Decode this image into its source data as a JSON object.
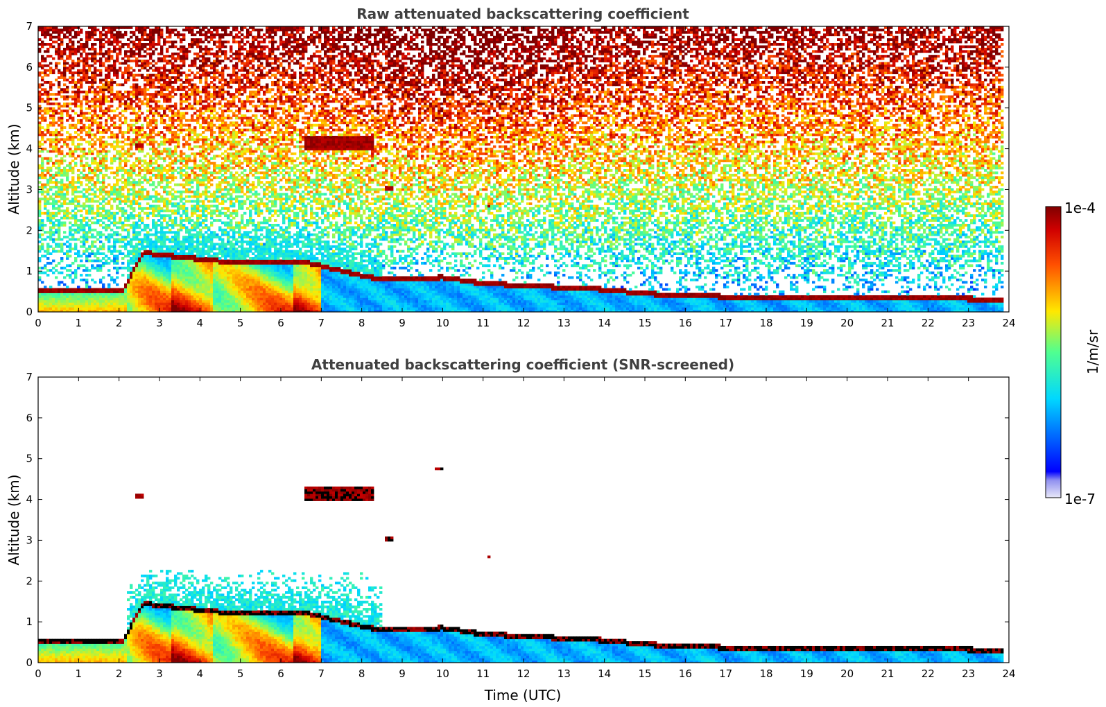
{
  "chart_data": [
    {
      "type": "heatmap",
      "title": "Raw attenuated backscattering coefficient",
      "xlabel": "",
      "ylabel": "Altitude (km)",
      "xlim": [
        0,
        24
      ],
      "ylim": [
        0,
        7
      ],
      "x_ticks": [
        "0",
        "1",
        "2",
        "3",
        "4",
        "5",
        "6",
        "7",
        "8",
        "9",
        "10",
        "11",
        "12",
        "13",
        "14",
        "15",
        "16",
        "17",
        "18",
        "19",
        "20",
        "21",
        "22",
        "23",
        "24"
      ],
      "y_ticks": [
        "0",
        "1",
        "2",
        "3",
        "4",
        "5",
        "6",
        "7"
      ],
      "x_range_data": [
        0,
        23.85
      ],
      "screened": false,
      "boundary_layer_top_km": [
        [
          0,
          0.5
        ],
        [
          2.1,
          0.55
        ],
        [
          2.6,
          1.45
        ],
        [
          4,
          1.3
        ],
        [
          5,
          1.2
        ],
        [
          6,
          1.25
        ],
        [
          6.7,
          1.2
        ],
        [
          8.2,
          0.85
        ],
        [
          9,
          0.8
        ],
        [
          10,
          0.85
        ],
        [
          11,
          0.7
        ],
        [
          12,
          0.65
        ],
        [
          13,
          0.6
        ],
        [
          14,
          0.55
        ],
        [
          15,
          0.45
        ],
        [
          16,
          0.4
        ],
        [
          18,
          0.35
        ],
        [
          20,
          0.35
        ],
        [
          22,
          0.35
        ],
        [
          23.8,
          0.3
        ]
      ],
      "cloud_features": [
        {
          "time_utc": [
            6.6,
            8.3
          ],
          "altitude_km": [
            3.95,
            4.3
          ],
          "level": "high"
        },
        {
          "time_utc": [
            2.4,
            2.6
          ],
          "altitude_km": [
            4.0,
            4.15
          ],
          "level": "high"
        },
        {
          "time_utc": [
            9.8,
            10.0
          ],
          "altitude_km": [
            4.7,
            4.8
          ],
          "level": "high"
        },
        {
          "time_utc": [
            8.6,
            8.8
          ],
          "altitude_km": [
            3.0,
            3.1
          ],
          "level": "high"
        },
        {
          "time_utc": [
            11.1,
            11.2
          ],
          "altitude_km": [
            2.55,
            2.65
          ],
          "level": "high"
        }
      ]
    },
    {
      "type": "heatmap",
      "title": "Attenuated backscattering coefficient (SNR-screened)",
      "xlabel": "Time (UTC)",
      "ylabel": "Altitude (km)",
      "xlim": [
        0,
        24
      ],
      "ylim": [
        0,
        7
      ],
      "x_ticks": [
        "0",
        "1",
        "2",
        "3",
        "4",
        "5",
        "6",
        "7",
        "8",
        "9",
        "10",
        "11",
        "12",
        "13",
        "14",
        "15",
        "16",
        "17",
        "18",
        "19",
        "20",
        "21",
        "22",
        "23",
        "24"
      ],
      "y_ticks": [
        "0",
        "1",
        "2",
        "3",
        "4",
        "5",
        "6",
        "7"
      ],
      "x_range_data": [
        0,
        23.85
      ],
      "screened": true
    }
  ],
  "colorbar": {
    "label": "1/m/sr",
    "max_label": "1e-4",
    "min_label": "1e-7",
    "scale": "log",
    "colormap": "jet"
  }
}
